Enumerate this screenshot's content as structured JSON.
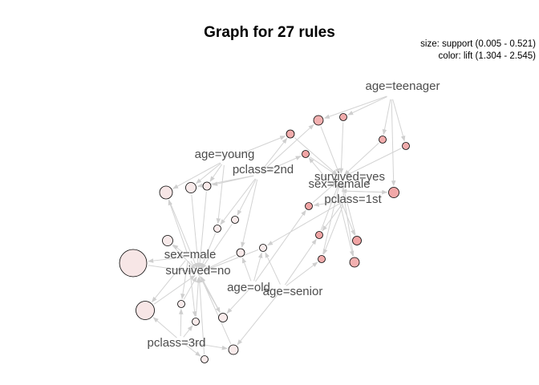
{
  "title": "Graph for 27 rules",
  "legend": {
    "size": "size: support (0.005 - 0.521)",
    "color": "color: lift (1.304 - 2.545)"
  },
  "colors": {
    "edge": "#d3d3d3",
    "label": "#4d4d4d",
    "lift_low": "#f8eeee",
    "lift_high": "#f0a0a0"
  },
  "items": [
    {
      "id": "age_teenager",
      "label": "age=teenager"
    },
    {
      "id": "age_young",
      "label": "age=young"
    },
    {
      "id": "pclass_2nd",
      "label": "pclass=2nd"
    },
    {
      "id": "survived_yes",
      "label": "survived=yes"
    },
    {
      "id": "sex_female",
      "label": "sex=female"
    },
    {
      "id": "pclass_1st",
      "label": "pclass=1st"
    },
    {
      "id": "sex_male",
      "label": "sex=male"
    },
    {
      "id": "survived_no",
      "label": "survived=no"
    },
    {
      "id": "age_old",
      "label": "age=old"
    },
    {
      "id": "age_senior",
      "label": "age=senior"
    },
    {
      "id": "pclass_3rd",
      "label": "pclass=3rd"
    }
  ]
}
